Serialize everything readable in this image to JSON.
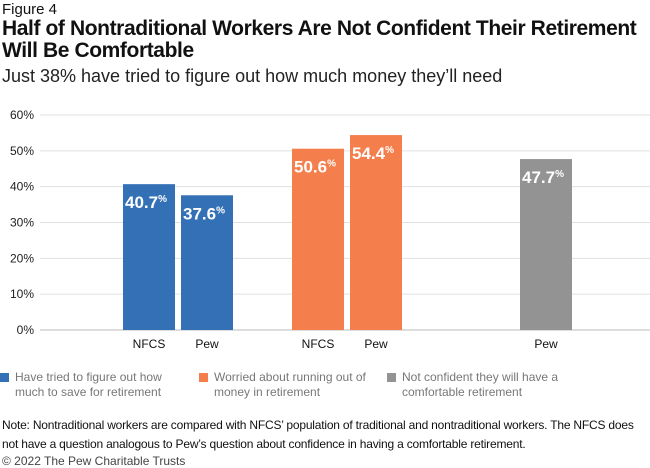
{
  "figure_label": "Figure 4",
  "title": "Half of Nontraditional Workers Are Not Confident Their Retirement Will Be Comfortable",
  "subtitle": "Just 38% have tried to figure out how much money they’ll need",
  "chart_data": {
    "type": "bar",
    "ylim": [
      0,
      60
    ],
    "yticks": [
      "0%",
      "10%",
      "20%",
      "30%",
      "40%",
      "50%",
      "60%"
    ],
    "grid": true,
    "legend_position": "bottom",
    "bars": [
      {
        "category": "NFCS",
        "series": 0,
        "value": 40.7,
        "label": "40.7"
      },
      {
        "category": "Pew",
        "series": 0,
        "value": 37.6,
        "label": "37.6"
      },
      {
        "category": "NFCS",
        "series": 1,
        "value": 50.6,
        "label": "50.6"
      },
      {
        "category": "Pew",
        "series": 1,
        "value": 54.4,
        "label": "54.4"
      },
      {
        "category": "Pew",
        "series": 2,
        "value": 47.7,
        "label": "47.7"
      }
    ],
    "series": [
      {
        "name": "Have tried to figure out how much to save for retirement",
        "color": "#3470b6"
      },
      {
        "name": "Worried about running out of money in retirement",
        "color": "#f47f4d"
      },
      {
        "name": "Not confident they will have a comfortable retirement",
        "color": "#939393"
      }
    ],
    "percent_sign": "%"
  },
  "note": "Note: Nontraditional workers are compared with NFCS’ population of traditional and nontraditional workers. The NFCS does not have a question analogous to Pew’s question about confidence in having a comfortable retirement.",
  "copyright": "© 2022 The Pew Charitable Trusts"
}
